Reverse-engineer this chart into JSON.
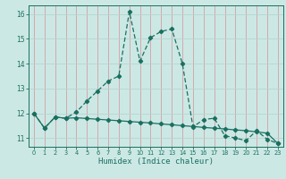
{
  "title": "",
  "xlabel": "Humidex (Indice chaleur)",
  "bg_color": "#cce8e5",
  "grid_color_major": "#c8b8b8",
  "line_color": "#1a7060",
  "xlim": [
    -0.5,
    23.5
  ],
  "ylim": [
    10.65,
    16.35
  ],
  "yticks": [
    11,
    12,
    13,
    14,
    15,
    16
  ],
  "xticks": [
    0,
    1,
    2,
    3,
    4,
    5,
    6,
    7,
    8,
    9,
    10,
    11,
    12,
    13,
    14,
    15,
    16,
    17,
    18,
    19,
    20,
    21,
    22,
    23
  ],
  "line1_x": [
    0,
    1,
    2,
    3,
    4,
    5,
    6,
    7,
    8,
    9,
    10,
    11,
    12,
    13,
    14,
    15,
    16,
    17,
    18,
    19,
    20,
    21,
    22,
    23
  ],
  "line1_y": [
    12.0,
    11.4,
    11.85,
    11.8,
    12.05,
    12.5,
    12.9,
    13.3,
    13.5,
    16.1,
    14.1,
    15.05,
    15.3,
    15.4,
    14.0,
    11.45,
    11.75,
    11.8,
    11.1,
    11.0,
    10.9,
    11.3,
    10.95,
    10.78
  ],
  "line2_x": [
    0,
    1,
    2,
    3,
    4,
    5,
    6,
    7,
    8,
    9,
    10,
    11,
    12,
    13,
    14,
    15,
    16,
    17,
    18,
    19,
    20,
    21,
    22,
    23
  ],
  "line2_y": [
    12.0,
    11.4,
    11.85,
    11.8,
    11.82,
    11.79,
    11.76,
    11.73,
    11.7,
    11.67,
    11.64,
    11.61,
    11.57,
    11.54,
    11.5,
    11.47,
    11.43,
    11.4,
    11.37,
    11.33,
    11.3,
    11.25,
    11.2,
    10.78
  ]
}
